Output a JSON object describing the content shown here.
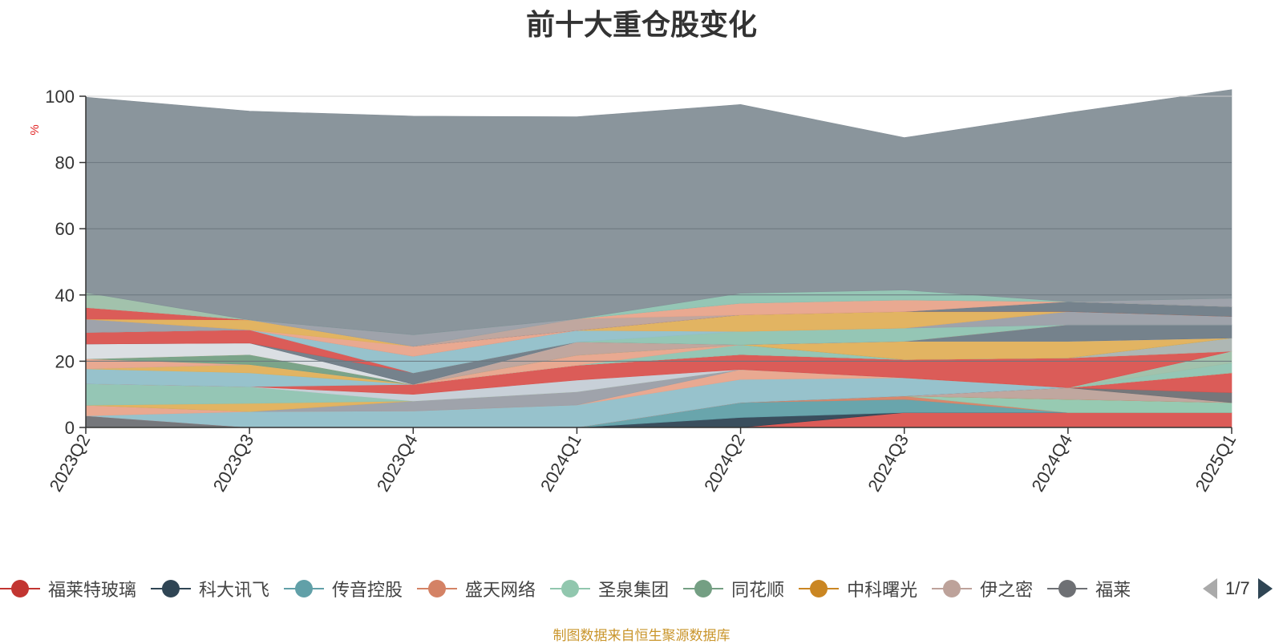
{
  "chart_data": {
    "type": "area",
    "title": "前十大重仓股变化",
    "ylabel": "%",
    "ylim": [
      0,
      100
    ],
    "y_ticks": [
      "0",
      "20",
      "40",
      "60",
      "80",
      "100"
    ],
    "categories": [
      "2023Q2",
      "2023Q3",
      "2023Q4",
      "2024Q1",
      "2024Q2",
      "2024Q3",
      "2024Q4",
      "2025Q1"
    ],
    "stacked": true,
    "grid": true,
    "series": [
      {
        "name": "福莱特玻璃",
        "color": "#d9534f",
        "values": [
          0,
          0,
          0,
          0,
          0,
          4.5,
          4.5,
          4.5
        ]
      },
      {
        "name": "科大讯飞",
        "color": "#2f4554",
        "values": [
          0,
          0,
          0,
          0,
          3.0,
          0,
          0,
          0
        ]
      },
      {
        "name": "传音控股",
        "color": "#61a0a8",
        "values": [
          0,
          0,
          0,
          0,
          4.5,
          4.0,
          0,
          0
        ]
      },
      {
        "name": "盛天网络",
        "color": "#d48265",
        "values": [
          0,
          0,
          0,
          0,
          0,
          1.0,
          0,
          0
        ]
      },
      {
        "name": "圣泉集团",
        "color": "#91c7ae",
        "values": [
          0,
          0,
          0,
          0,
          0,
          0,
          4.0,
          3.0
        ]
      },
      {
        "name": "同花顺",
        "color": "#749f83",
        "values": [
          0,
          0,
          0,
          0,
          0,
          0,
          0,
          0
        ]
      },
      {
        "name": "中科曙光",
        "color": "#ca8622",
        "values": [
          0,
          0,
          0,
          0,
          0,
          0,
          0,
          0
        ]
      },
      {
        "name": "伊之密",
        "color": "#bda29a",
        "values": [
          0,
          0,
          0,
          0,
          0,
          0,
          3.5,
          0
        ]
      },
      {
        "name": "福",
        "color": "#6e7074",
        "values": [
          3.5,
          0,
          0,
          0,
          0,
          0,
          0,
          3.0
        ]
      },
      {
        "name": "",
        "color": "#d9534f",
        "values": [
          0,
          0,
          0,
          0,
          0,
          0,
          0,
          6.0
        ]
      },
      {
        "name": "",
        "color": "#91bfc9",
        "values": [
          0,
          4.8,
          5.0,
          6.8,
          7.0,
          5.5,
          0,
          0
        ]
      },
      {
        "name": "",
        "color": "#e8a48b",
        "values": [
          3.2,
          0,
          0,
          0,
          3.0,
          0,
          0,
          0
        ]
      },
      {
        "name": "",
        "color": "#9a9ea6",
        "values": [
          0,
          0,
          3.0,
          4.0,
          0,
          0,
          0,
          0
        ]
      },
      {
        "name": "",
        "color": "#e0b05a",
        "values": [
          0,
          2.5,
          0,
          0,
          0,
          0,
          0,
          0
        ]
      },
      {
        "name": "",
        "color": "#8fc3b1",
        "values": [
          6.5,
          5.0,
          0,
          0,
          0,
          0,
          0,
          3.0
        ]
      },
      {
        "name": "",
        "color": "#9dbfa8",
        "values": [
          0,
          0,
          0,
          0,
          0,
          0,
          0,
          3.5
        ]
      },
      {
        "name": "",
        "color": "#c5cdd6",
        "values": [
          0,
          0,
          2.0,
          3.5,
          0,
          0,
          0,
          0
        ]
      },
      {
        "name": "",
        "color": "#d9534f",
        "values": [
          0,
          0,
          3.0,
          4.5,
          4.5,
          5.5,
          9.0,
          0
        ]
      },
      {
        "name": "",
        "color": "#91bfc9",
        "values": [
          4.5,
          4.2,
          0,
          0,
          0,
          0,
          0,
          0
        ]
      },
      {
        "name": "",
        "color": "#e0b05a",
        "values": [
          0,
          2.5,
          0,
          0,
          0,
          0,
          0,
          0
        ]
      },
      {
        "name": "",
        "color": "#aab3b0",
        "values": [
          0,
          0,
          0,
          0,
          0,
          0,
          0,
          4.0
        ]
      },
      {
        "name": "",
        "color": "#8fc3b1",
        "values": [
          0,
          0,
          0,
          0,
          3.0,
          0,
          0,
          0
        ]
      },
      {
        "name": "",
        "color": "#e8a48b",
        "values": [
          3.0,
          0,
          0,
          3.0,
          0,
          0,
          0,
          0
        ]
      },
      {
        "name": "",
        "color": "#749f83",
        "values": [
          0,
          3.0,
          0,
          0,
          0,
          0,
          0,
          0
        ]
      },
      {
        "name": "",
        "color": "#e0b05a",
        "values": [
          0,
          0,
          0,
          0,
          0,
          5.5,
          5.0,
          0
        ]
      },
      {
        "name": "",
        "color": "#bda29a",
        "values": [
          0,
          0,
          0,
          4.0,
          0,
          0,
          0,
          0
        ]
      },
      {
        "name": "",
        "color": "#d9dde2",
        "values": [
          4.5,
          3.5,
          0,
          0,
          0,
          0,
          0,
          0
        ]
      },
      {
        "name": "",
        "color": "#6e7b86",
        "values": [
          0,
          0,
          3.5,
          0,
          0,
          0,
          5.0,
          4.0
        ]
      },
      {
        "name": "",
        "color": "#d9534f",
        "values": [
          3.5,
          4.0,
          0,
          0,
          0,
          0,
          0,
          0
        ]
      },
      {
        "name": "",
        "color": "#8fc3b1",
        "values": [
          0,
          0,
          0,
          0,
          4.0,
          4.0,
          0,
          0
        ]
      },
      {
        "name": "",
        "color": "#91bfc9",
        "values": [
          0,
          0,
          5.0,
          3.5,
          0,
          0,
          0,
          0
        ]
      },
      {
        "name": "",
        "color": "#9a9ea6",
        "values": [
          4.0,
          0,
          0,
          0,
          0,
          0,
          4.0,
          2.5
        ]
      },
      {
        "name": "",
        "color": "#e8a48b",
        "values": [
          0,
          0,
          3.0,
          0,
          0,
          0,
          0,
          0
        ]
      },
      {
        "name": "",
        "color": "#e0b05a",
        "values": [
          0,
          3.0,
          0,
          0,
          5.0,
          5.0,
          0,
          0
        ]
      },
      {
        "name": "",
        "color": "#d9534f",
        "values": [
          3.5,
          0,
          0,
          0,
          0,
          0,
          0,
          0
        ]
      },
      {
        "name": "",
        "color": "#6e7b86",
        "values": [
          0,
          0,
          0,
          0,
          0,
          0,
          3.0,
          3.0
        ]
      },
      {
        "name": "",
        "color": "#bda29a",
        "values": [
          0,
          0,
          0,
          3.5,
          0,
          0,
          0,
          0
        ]
      },
      {
        "name": "",
        "color": "#e8a48b",
        "values": [
          0,
          0,
          0,
          0,
          3.5,
          3.5,
          0,
          0
        ]
      },
      {
        "name": "",
        "color": "#9dbfa8",
        "values": [
          4.5,
          0,
          0,
          0,
          0,
          0,
          0,
          0
        ]
      },
      {
        "name": "",
        "color": "#9a9ea6",
        "values": [
          0,
          0,
          3.5,
          0,
          0,
          0,
          0,
          2.5
        ]
      },
      {
        "name": "",
        "color": "#8fc3b1",
        "values": [
          0,
          0,
          0,
          0,
          3.0,
          3.0,
          0,
          0
        ]
      },
      {
        "name": "",
        "color": "#848f97",
        "values": [
          59,
          63,
          66,
          61,
          57,
          46,
          57,
          63
        ]
      }
    ]
  },
  "legend": {
    "items": [
      {
        "label": "福莱特玻璃",
        "color": "#c23531"
      },
      {
        "label": "科大讯飞",
        "color": "#2f4554"
      },
      {
        "label": "传音控股",
        "color": "#61a0a8"
      },
      {
        "label": "盛天网络",
        "color": "#d48265"
      },
      {
        "label": "圣泉集团",
        "color": "#91c7ae"
      },
      {
        "label": "同花顺",
        "color": "#749f83"
      },
      {
        "label": "中科曙光",
        "color": "#ca8622"
      },
      {
        "label": "伊之密",
        "color": "#bda29a"
      },
      {
        "label": "福莱",
        "color": "#6e7074"
      }
    ],
    "page_text": "1/7"
  },
  "source_note": "制图数据来自恒生聚源数据库"
}
